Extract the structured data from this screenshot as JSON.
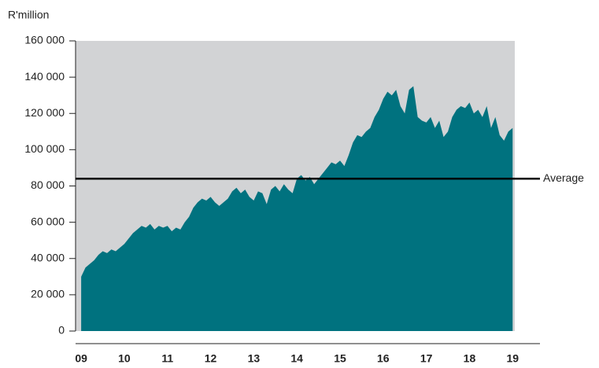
{
  "chart_data": {
    "type": "area",
    "ylabel": "R'million",
    "x": [
      2009.0,
      2009.1,
      2009.2,
      2009.3,
      2009.4,
      2009.5,
      2009.6,
      2009.7,
      2009.8,
      2009.9,
      2010.0,
      2010.1,
      2010.2,
      2010.3,
      2010.4,
      2010.5,
      2010.6,
      2010.7,
      2010.8,
      2010.9,
      2011.0,
      2011.1,
      2011.2,
      2011.3,
      2011.4,
      2011.5,
      2011.6,
      2011.7,
      2011.8,
      2011.9,
      2012.0,
      2012.1,
      2012.2,
      2012.3,
      2012.4,
      2012.5,
      2012.6,
      2012.7,
      2012.8,
      2012.9,
      2013.0,
      2013.1,
      2013.2,
      2013.3,
      2013.4,
      2013.5,
      2013.6,
      2013.7,
      2013.8,
      2013.9,
      2014.0,
      2014.1,
      2014.2,
      2014.3,
      2014.4,
      2014.5,
      2014.6,
      2014.7,
      2014.8,
      2014.9,
      2015.0,
      2015.1,
      2015.2,
      2015.3,
      2015.4,
      2015.5,
      2015.6,
      2015.7,
      2015.8,
      2015.9,
      2016.0,
      2016.1,
      2016.2,
      2016.3,
      2016.4,
      2016.5,
      2016.6,
      2016.7,
      2016.8,
      2016.9,
      2017.0,
      2017.1,
      2017.2,
      2017.3,
      2017.4,
      2017.5,
      2017.6,
      2017.7,
      2017.8,
      2017.9,
      2018.0,
      2018.1,
      2018.2,
      2018.3,
      2018.4,
      2018.5,
      2018.6,
      2018.7,
      2018.8,
      2018.9,
      2019.0
    ],
    "values": [
      30000,
      35000,
      37000,
      39000,
      42000,
      44000,
      43000,
      45000,
      44000,
      46000,
      48000,
      51000,
      54000,
      56000,
      58000,
      57000,
      59000,
      56000,
      58000,
      57000,
      58000,
      55000,
      57000,
      56000,
      60000,
      63000,
      68000,
      71000,
      73000,
      72000,
      74000,
      71000,
      69000,
      71000,
      73000,
      77000,
      79000,
      76000,
      78000,
      74000,
      72000,
      77000,
      76000,
      70000,
      78000,
      80000,
      77000,
      81000,
      78000,
      76000,
      84000,
      86000,
      83000,
      85000,
      81000,
      84000,
      87000,
      90000,
      93000,
      92000,
      94000,
      91000,
      97000,
      104000,
      108000,
      107000,
      110000,
      112000,
      118000,
      122000,
      128000,
      132000,
      130000,
      133000,
      124000,
      120000,
      133000,
      135000,
      118000,
      116000,
      115000,
      118000,
      112000,
      116000,
      107000,
      110000,
      118000,
      122000,
      124000,
      123000,
      126000,
      120000,
      122000,
      118000,
      124000,
      112000,
      118000,
      108000,
      105000,
      110000,
      112000
    ],
    "color": "#00727f",
    "background": "#d2d3d5",
    "xlim": [
      2008.87,
      2019.05
    ],
    "xticks": [
      {
        "value": 2009,
        "label": "09"
      },
      {
        "value": 2010,
        "label": "10"
      },
      {
        "value": 2011,
        "label": "11"
      },
      {
        "value": 2012,
        "label": "12"
      },
      {
        "value": 2013,
        "label": "13"
      },
      {
        "value": 2014,
        "label": "14"
      },
      {
        "value": 2015,
        "label": "15"
      },
      {
        "value": 2016,
        "label": "16"
      },
      {
        "value": 2017,
        "label": "17"
      },
      {
        "value": 2018,
        "label": "18"
      },
      {
        "value": 2019,
        "label": "19"
      }
    ],
    "ylim": [
      0,
      160000
    ],
    "yticks": [
      0,
      {
        "value": 20000,
        "label": "20 000"
      },
      {
        "value": 40000,
        "label": "40 000"
      },
      {
        "value": 60000,
        "label": "60 000"
      },
      {
        "value": 80000,
        "label": "80 000"
      },
      {
        "value": 100000,
        "label": "100 000"
      },
      {
        "value": 120000,
        "label": "120 000"
      },
      {
        "value": 140000,
        "label": "140 000"
      },
      {
        "value": 160000,
        "label": "160 000"
      }
    ],
    "annotations": [
      {
        "label": "Average",
        "value": 84000
      }
    ]
  }
}
